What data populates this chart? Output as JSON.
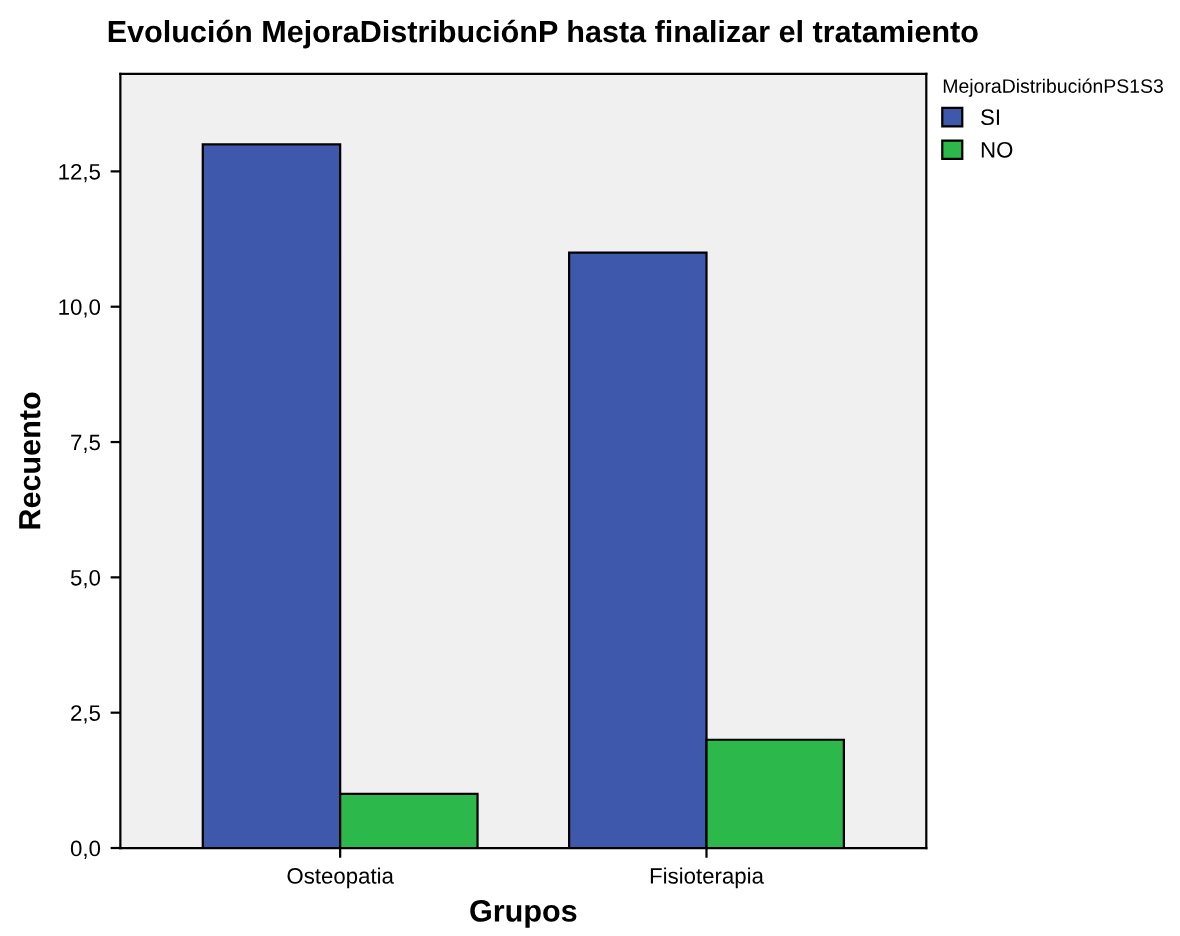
{
  "chart_data": {
    "type": "bar",
    "title": "Evolución MejoraDistribuciónP hasta finalizar el tratamiento",
    "xlabel": "Grupos",
    "ylabel": "Recuento",
    "legend_title": "MejoraDistribuciónPS1S3",
    "categories": [
      "Osteopatia",
      "Fisioterapia"
    ],
    "series": [
      {
        "name": "SI",
        "color": "#3e58ac",
        "values": [
          13,
          11
        ]
      },
      {
        "name": "NO",
        "color": "#2db84c",
        "values": [
          1,
          2
        ]
      }
    ],
    "ylim": [
      0,
      14.3
    ],
    "yticks": [
      {
        "value": 0,
        "label": "0,0"
      },
      {
        "value": 2.5,
        "label": "2,5"
      },
      {
        "value": 5,
        "label": "5,0"
      },
      {
        "value": 7.5,
        "label": "7,5"
      },
      {
        "value": 10,
        "label": "10,0"
      },
      {
        "value": 12.5,
        "label": "12,5"
      }
    ],
    "legend": "right",
    "grid": false
  }
}
